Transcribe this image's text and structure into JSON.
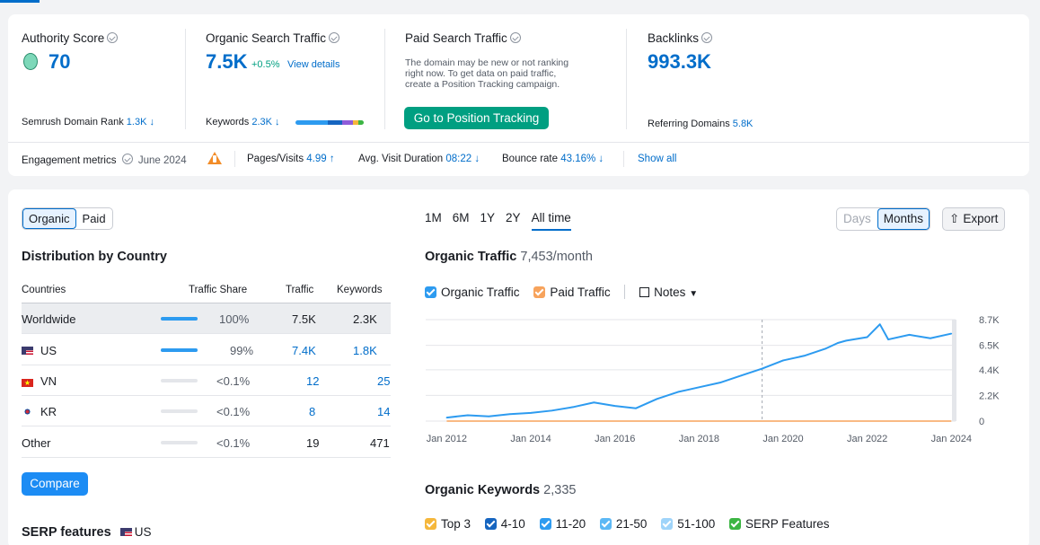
{
  "metrics": {
    "authority": {
      "label": "Authority Score",
      "value": "70",
      "rank_label": "Semrush Domain Rank",
      "rank_value": "1.3K ↓"
    },
    "organic": {
      "label": "Organic Search Traffic",
      "value": "7.5K",
      "change": "+0.5%",
      "link": "View details",
      "kw_label": "Keywords",
      "kw_value": "2.3K ↓"
    },
    "paid": {
      "label": "Paid Search Traffic",
      "note_1": "The domain may be new or not ranking",
      "note_2": "right now. To get data on paid traffic,",
      "note_3": "create a Position Tracking campaign.",
      "button": "Go to Position Tracking"
    },
    "backlinks": {
      "label": "Backlinks",
      "value": "993.3K",
      "ref_label": "Referring Domains",
      "ref_value": "5.8K"
    }
  },
  "engagement": {
    "label": "Engagement metrics",
    "date": "June 2024",
    "pages_label": "Pages/Visits",
    "pages_value": "4.99 ↑",
    "duration_label": "Avg. Visit Duration",
    "duration_value": "08:22 ↓",
    "bounce_label": "Bounce rate",
    "bounce_value": "43.16% ↓",
    "show_all": "Show all"
  },
  "distribution": {
    "tabs": [
      "Organic",
      "Paid"
    ],
    "title": "Distribution by Country",
    "columns": [
      "Countries",
      "Traffic Share",
      "Traffic",
      "Keywords"
    ],
    "rows": [
      {
        "country": "Worldwide",
        "share": "100%",
        "share_frac": 1.0,
        "traffic": "7.5K",
        "keywords": "2.3K"
      },
      {
        "country": "US",
        "share": "99%",
        "share_frac": 0.99,
        "traffic": "7.4K",
        "keywords": "1.8K",
        "flag": "us"
      },
      {
        "country": "VN",
        "share": "<0.1%",
        "share_frac": 0.0,
        "traffic": "12",
        "keywords": "25",
        "flag": "vn"
      },
      {
        "country": "KR",
        "share": "<0.1%",
        "share_frac": 0.0,
        "traffic": "8",
        "keywords": "14",
        "flag": "kr"
      },
      {
        "country": "Other",
        "share": "<0.1%",
        "share_frac": 0.0,
        "traffic": "19",
        "keywords": "471"
      }
    ],
    "compare": "Compare",
    "serp_title": "SERP features",
    "serp_country": "US"
  },
  "periods": [
    "1M",
    "6M",
    "1Y",
    "2Y",
    "All time"
  ],
  "toggles": {
    "days": "Days",
    "months": "Months",
    "export": "Export"
  },
  "organic_traffic": {
    "title": "Organic Traffic",
    "value": "7,453/month"
  },
  "legend": {
    "organic": "Organic Traffic",
    "paid": "Paid Traffic",
    "notes": "Notes"
  },
  "organic_keywords": {
    "title": "Organic Keywords",
    "value": "2,335",
    "legend": [
      {
        "label": "Top 3",
        "color": "#f5b73b"
      },
      {
        "label": "4-10",
        "color": "#1665c0"
      },
      {
        "label": "11-20",
        "color": "#2d9bf0"
      },
      {
        "label": "21-50",
        "color": "#5cb8f5"
      },
      {
        "label": "51-100",
        "color": "#9fd4fa"
      },
      {
        "label": "SERP Features",
        "color": "#3cb543"
      }
    ]
  },
  "colors": {
    "accent": "#006dca",
    "green": "#009f81",
    "organic_line": "#2d9bf0",
    "paid_line": "#f7a35c"
  },
  "chart_data": {
    "type": "line",
    "ylim": [
      0,
      8700
    ],
    "y_ticks": [
      "8.7K",
      "6.5K",
      "4.4K",
      "2.2K",
      "0"
    ],
    "x_ticks": [
      "Jan 2012",
      "Jan 2014",
      "Jan 2016",
      "Jan 2018",
      "Jan 2020",
      "Jan 2022",
      "Jan 2024"
    ],
    "x": [
      2012.0,
      2012.5,
      2013.0,
      2013.5,
      2014.0,
      2014.5,
      2015.0,
      2015.5,
      2016.0,
      2016.5,
      2017.0,
      2017.5,
      2018.0,
      2018.5,
      2019.0,
      2019.5,
      2020.0,
      2020.5,
      2021.0,
      2021.3,
      2021.5,
      2022.0,
      2022.3,
      2022.5,
      2023.0,
      2023.5,
      2024.0
    ],
    "series": [
      {
        "name": "Organic Traffic",
        "values": [
          300,
          500,
          400,
          600,
          700,
          900,
          1200,
          1600,
          1300,
          1100,
          1900,
          2500,
          2900,
          3300,
          3900,
          4500,
          5200,
          5600,
          6200,
          6700,
          6900,
          7200,
          8300,
          7000,
          7400,
          7100,
          7500
        ]
      },
      {
        "name": "Paid Traffic",
        "values": [
          0,
          0,
          0,
          0,
          0,
          0,
          0,
          0,
          0,
          0,
          0,
          0,
          0,
          0,
          0,
          0,
          0,
          0,
          0,
          0,
          0,
          0,
          0,
          0,
          0,
          0,
          0
        ]
      }
    ]
  }
}
